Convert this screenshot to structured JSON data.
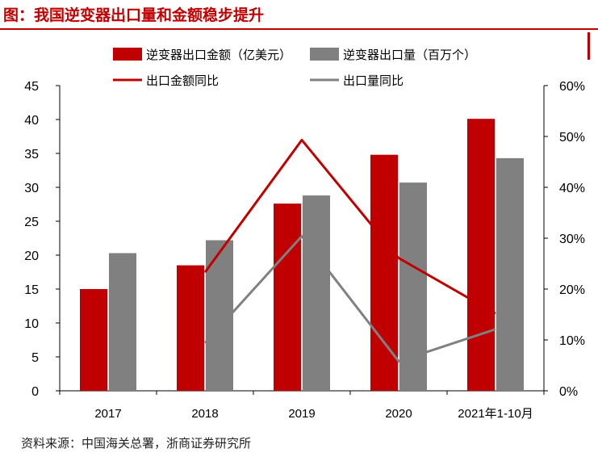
{
  "header": {
    "title": "图：我国逆变器出口量和金额稳步提升"
  },
  "footer": {
    "source": "资料来源：中国海关总署，浙商证券研究所"
  },
  "colors": {
    "amount_bar": "#c00000",
    "volume_bar": "#808080",
    "amount_line": "#c00000",
    "volume_line": "#808080"
  },
  "chart_data": {
    "type": "bar",
    "categories": [
      "2017",
      "2018",
      "2019",
      "2020",
      "2021年1-10月"
    ],
    "series": [
      {
        "name": "逆变器出口金额（亿美元）",
        "type": "bar",
        "axis": "left",
        "values": [
          15,
          18.5,
          27.6,
          34.8,
          40.1
        ]
      },
      {
        "name": "逆变器出口量（百万个）",
        "type": "bar",
        "axis": "left",
        "values": [
          20.3,
          22.2,
          28.8,
          30.7,
          34.3
        ]
      },
      {
        "name": "出口金额同比",
        "type": "line",
        "axis": "right",
        "values": [
          null,
          23.3,
          49.3,
          26.1,
          15.2
        ]
      },
      {
        "name": "出口量同比",
        "type": "line",
        "axis": "right",
        "values": [
          null,
          9.4,
          30.4,
          5.8,
          12.1
        ]
      }
    ],
    "y_left": {
      "ticks": [
        "0",
        "5",
        "10",
        "15",
        "20",
        "25",
        "30",
        "35",
        "40",
        "45"
      ],
      "ylim": [
        0,
        45
      ]
    },
    "y_right": {
      "ticks": [
        "0%",
        "10%",
        "20%",
        "30%",
        "40%",
        "50%",
        "60%"
      ],
      "ylim": [
        0,
        60
      ]
    },
    "legend": "top",
    "grid": false
  }
}
